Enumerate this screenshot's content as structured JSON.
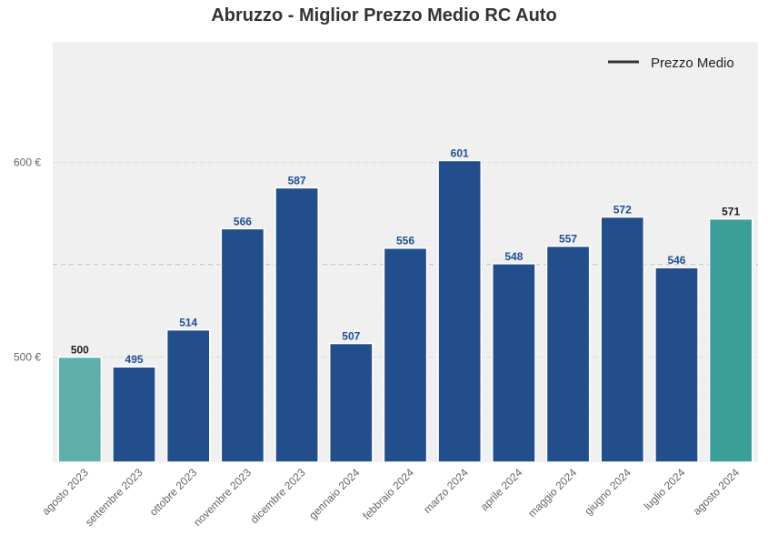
{
  "chart_data": {
    "type": "bar",
    "title": "Abruzzo - Miglior Prezzo Medio RC Auto",
    "xlabel": "",
    "ylabel": "",
    "categories": [
      "agosto 2023",
      "settembre 2023",
      "ottobre 2023",
      "novembre 2023",
      "dicembre 2023",
      "gennaio 2024",
      "febbraio 2024",
      "marzo 2024",
      "aprile 2024",
      "maggio 2024",
      "giugno 2024",
      "luglio 2024",
      "agosto 2024"
    ],
    "values": [
      500,
      495,
      514,
      566,
      587,
      507,
      556,
      601,
      548,
      557,
      572,
      546,
      571
    ],
    "value_labels": [
      "500",
      "495",
      "514",
      "566",
      "587",
      "507",
      "556",
      "601",
      "548",
      "557",
      "572",
      "546",
      "571"
    ],
    "bar_colors": [
      "#5fb0aa",
      "#234e8c",
      "#234e8c",
      "#234e8c",
      "#234e8c",
      "#234e8c",
      "#234e8c",
      "#234e8c",
      "#234e8c",
      "#234e8c",
      "#234e8c",
      "#234e8c",
      "#3b9e98"
    ],
    "label_colors": [
      "#222222",
      "#1f4e96",
      "#1f4e96",
      "#1f4e96",
      "#1f4e96",
      "#1f4e96",
      "#1f4e96",
      "#1f4e96",
      "#1f4e96",
      "#1f4e96",
      "#1f4e96",
      "#1f4e96",
      "#222222"
    ],
    "ylim": [
      446,
      662
    ],
    "yticks": [
      500,
      600
    ],
    "ytick_labels": [
      "500 €",
      "600 €"
    ],
    "reference_line": {
      "label": "Prezzo Medio",
      "value": 547.6
    },
    "legend": {
      "position": "top-right",
      "entries": [
        "Prezzo Medio"
      ]
    },
    "grid": true,
    "background": "#f0f0f0"
  }
}
